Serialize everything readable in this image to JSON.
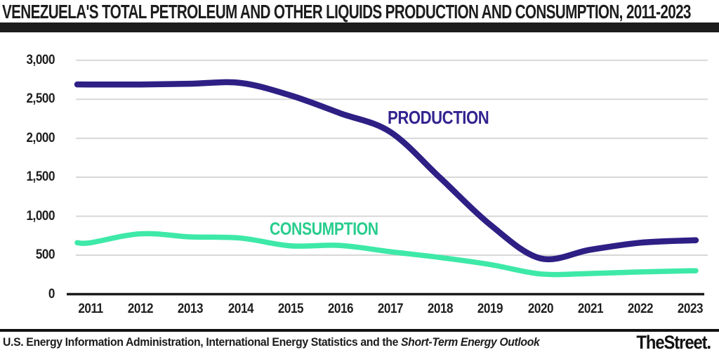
{
  "header": {
    "title": "VENEZUELA'S TOTAL PETROLEUM AND OTHER LIQUIDS PRODUCTION AND CONSUMPTION, 2011-2023"
  },
  "footer": {
    "source_regular": "U.S. Energy Information Administration, International Energy Statistics and the ",
    "source_italic": "Short-Term Energy Outlook",
    "brand": "TheStreet."
  },
  "chart_data": {
    "type": "line",
    "title": "VENEZUELA'S TOTAL PETROLEUM AND OTHER LIQUIDS PRODUCTION AND CONSUMPTION, 2011-2023",
    "categories": [
      2011,
      2012,
      2013,
      2014,
      2015,
      2016,
      2017,
      2018,
      2019,
      2020,
      2021,
      2022,
      2023
    ],
    "x_tick_labels": [
      "2011",
      "2012",
      "2013",
      "2014",
      "2015",
      "2016",
      "2017",
      "2018",
      "2019",
      "2020",
      "2021",
      "2022",
      "2023"
    ],
    "y_axis": {
      "ticks": [
        0,
        500,
        1000,
        1500,
        2000,
        2500,
        3000
      ],
      "tick_labels": [
        "0",
        "500",
        "1,000",
        "1,500",
        "2,000",
        "2,500",
        "3,000"
      ],
      "range": [
        0,
        3000
      ]
    },
    "grid": "horizontal",
    "legend": "inline-labels",
    "series": [
      {
        "name": "PRODUCTION",
        "color": "#2e1f85",
        "label_color": "#32238f",
        "values": [
          2690,
          2690,
          2700,
          2710,
          2550,
          2320,
          2080,
          1490,
          890,
          460,
          570,
          660,
          690
        ]
      },
      {
        "name": "CONSUMPTION",
        "color": "#3ee9a8",
        "label_color": "#28cd8c",
        "values": [
          660,
          775,
          735,
          720,
          620,
          625,
          545,
          470,
          380,
          260,
          265,
          285,
          300
        ]
      }
    ]
  }
}
